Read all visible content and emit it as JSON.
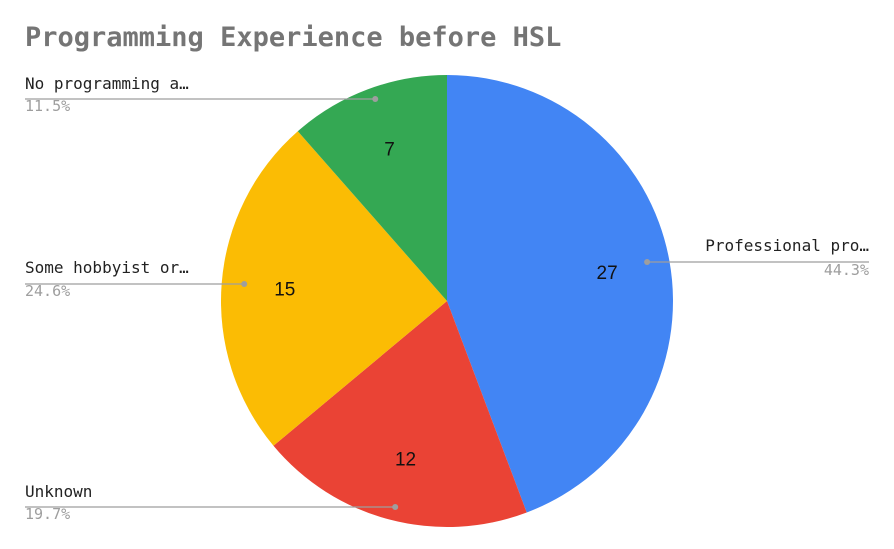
{
  "chart_data": {
    "type": "pie",
    "title": "Programming Experience before HSL",
    "slices": [
      {
        "label": "Professional pro…",
        "value": 27,
        "percent": "44.3%",
        "color": "#4285f4"
      },
      {
        "label": "Unknown",
        "value": 12,
        "percent": "19.7%",
        "color": "#ea4335"
      },
      {
        "label": "Some hobbyist or…",
        "value": 15,
        "percent": "24.6%",
        "color": "#fbbc04"
      },
      {
        "label": "No programming a…",
        "value": 7,
        "percent": "11.5%",
        "color": "#34a853"
      }
    ],
    "legend": "none"
  }
}
